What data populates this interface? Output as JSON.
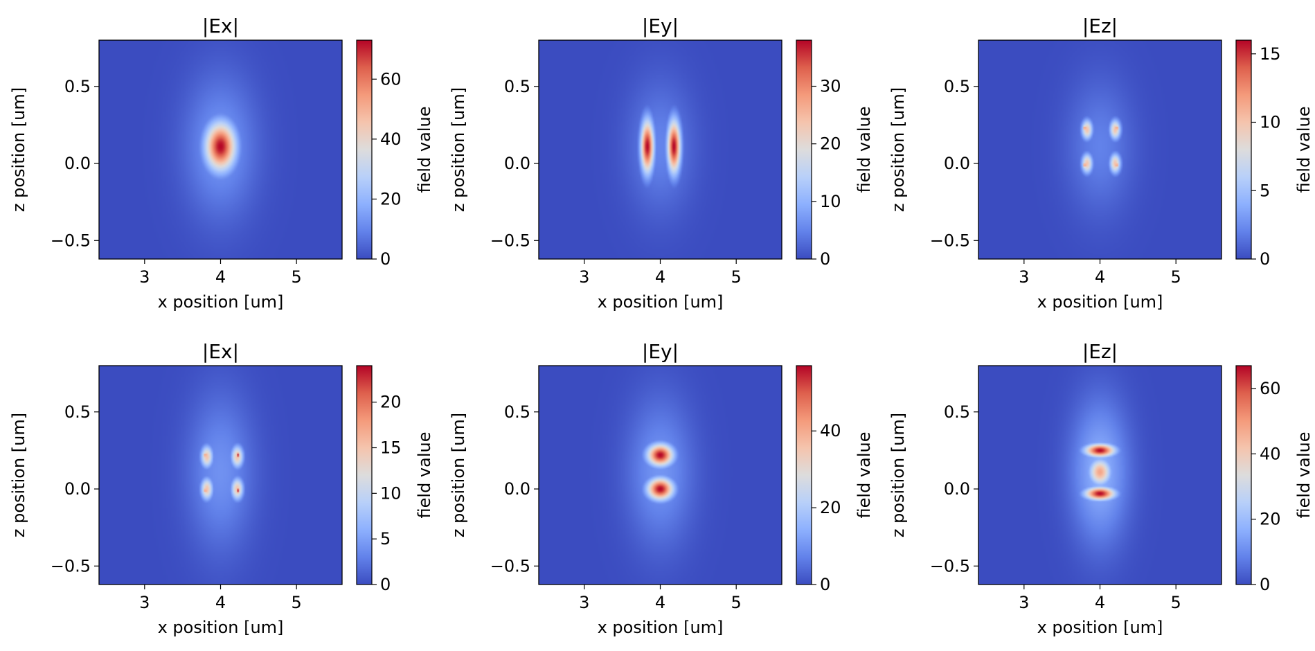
{
  "colors": {
    "colormap": "coolwarm",
    "background_blue": "#3b4cc0",
    "peak_red": "#b40426",
    "frame": "#000000"
  },
  "chart_data": [
    {
      "type": "heatmap",
      "title": "|Ex|",
      "xlabel": "x position [um]",
      "ylabel": "z position [um]",
      "colorbar_label": "field value",
      "xlim": [
        2.4,
        5.6
      ],
      "ylim": [
        -0.62,
        0.8
      ],
      "xticks": [
        3,
        4,
        5
      ],
      "xtick_labels": [
        "3",
        "4",
        "5"
      ],
      "yticks": [
        -0.5,
        0.0,
        0.5
      ],
      "ytick_labels": [
        "−0.5",
        "0.0",
        "0.5"
      ],
      "clim": [
        0,
        73
      ],
      "cticks": [
        0,
        20,
        40,
        60
      ],
      "ctick_labels": [
        "0",
        "20",
        "40",
        "60"
      ],
      "features": [
        {
          "x": 4.0,
          "z": 0.11,
          "sx": 0.14,
          "sz": 0.11,
          "amp": 73
        },
        {
          "x": 4.0,
          "z": 0.11,
          "sx": 0.33,
          "sz": 0.32,
          "amp": 13
        }
      ]
    },
    {
      "type": "heatmap",
      "title": "|Ey|",
      "xlabel": "x position [um]",
      "ylabel": "z position [um]",
      "colorbar_label": "field value",
      "xlim": [
        2.4,
        5.6
      ],
      "ylim": [
        -0.62,
        0.8
      ],
      "xticks": [
        3,
        4,
        5
      ],
      "xtick_labels": [
        "3",
        "4",
        "5"
      ],
      "yticks": [
        -0.5,
        0.0,
        0.5
      ],
      "ytick_labels": [
        "−0.5",
        "0.0",
        "0.5"
      ],
      "clim": [
        0,
        38
      ],
      "cticks": [
        0,
        10,
        20,
        30
      ],
      "ctick_labels": [
        "0",
        "10",
        "20",
        "30"
      ],
      "features": [
        {
          "x": 3.83,
          "z": 0.11,
          "sx": 0.06,
          "sz": 0.12,
          "amp": 38
        },
        {
          "x": 4.18,
          "z": 0.11,
          "sx": 0.06,
          "sz": 0.12,
          "amp": 38
        },
        {
          "x": 4.0,
          "z": 0.11,
          "sx": 0.3,
          "sz": 0.3,
          "amp": 5
        }
      ]
    },
    {
      "type": "heatmap",
      "title": "|Ez|",
      "xlabel": "x position [um]",
      "ylabel": "z position [um]",
      "colorbar_label": "field value",
      "xlim": [
        2.4,
        5.6
      ],
      "ylim": [
        -0.62,
        0.8
      ],
      "xticks": [
        3,
        4,
        5
      ],
      "xtick_labels": [
        "3",
        "4",
        "5"
      ],
      "yticks": [
        -0.5,
        0.0,
        0.5
      ],
      "ytick_labels": [
        "−0.5",
        "0.0",
        "0.5"
      ],
      "clim": [
        0,
        16
      ],
      "cticks": [
        0,
        5,
        10,
        15
      ],
      "ctick_labels": [
        "0",
        "5",
        "10",
        "15"
      ],
      "features": [
        {
          "x": 3.83,
          "z": 0.22,
          "sx": 0.05,
          "sz": 0.045,
          "amp": 10
        },
        {
          "x": 4.2,
          "z": 0.22,
          "sx": 0.05,
          "sz": 0.045,
          "amp": 10
        },
        {
          "x": 3.83,
          "z": 0.0,
          "sx": 0.05,
          "sz": 0.045,
          "amp": 10
        },
        {
          "x": 4.2,
          "z": 0.0,
          "sx": 0.05,
          "sz": 0.045,
          "amp": 10
        },
        {
          "x": 3.8,
          "z": 0.23,
          "sx": 0.012,
          "sz": 0.015,
          "amp": 16
        },
        {
          "x": 4.22,
          "z": 0.23,
          "sx": 0.012,
          "sz": 0.015,
          "amp": 16
        },
        {
          "x": 3.8,
          "z": -0.01,
          "sx": 0.012,
          "sz": 0.015,
          "amp": 16
        },
        {
          "x": 4.22,
          "z": -0.01,
          "sx": 0.012,
          "sz": 0.015,
          "amp": 16
        },
        {
          "x": 4.0,
          "z": 0.11,
          "sx": 0.3,
          "sz": 0.3,
          "amp": 2
        }
      ]
    },
    {
      "type": "heatmap",
      "title": "|Ex|",
      "xlabel": "x position [um]",
      "ylabel": "z position [um]",
      "colorbar_label": "field value",
      "xlim": [
        2.4,
        5.6
      ],
      "ylim": [
        -0.62,
        0.8
      ],
      "xticks": [
        3,
        4,
        5
      ],
      "xtick_labels": [
        "3",
        "4",
        "5"
      ],
      "yticks": [
        -0.5,
        0.0,
        0.5
      ],
      "ytick_labels": [
        "−0.5",
        "0.0",
        "0.5"
      ],
      "clim": [
        0,
        24
      ],
      "cticks": [
        0,
        5,
        10,
        15,
        20
      ],
      "ctick_labels": [
        "0",
        "5",
        "10",
        "15",
        "20"
      ],
      "features": [
        {
          "x": 3.82,
          "z": 0.21,
          "sx": 0.055,
          "sz": 0.05,
          "amp": 15
        },
        {
          "x": 4.22,
          "z": 0.21,
          "sx": 0.055,
          "sz": 0.05,
          "amp": 15
        },
        {
          "x": 3.82,
          "z": 0.0,
          "sx": 0.055,
          "sz": 0.05,
          "amp": 15
        },
        {
          "x": 4.22,
          "z": 0.0,
          "sx": 0.055,
          "sz": 0.05,
          "amp": 15
        },
        {
          "x": 3.8,
          "z": 0.22,
          "sx": 0.012,
          "sz": 0.015,
          "amp": 24
        },
        {
          "x": 4.23,
          "z": 0.22,
          "sx": 0.012,
          "sz": 0.015,
          "amp": 24
        },
        {
          "x": 3.8,
          "z": -0.01,
          "sx": 0.012,
          "sz": 0.015,
          "amp": 24
        },
        {
          "x": 4.23,
          "z": -0.01,
          "sx": 0.012,
          "sz": 0.015,
          "amp": 24
        },
        {
          "x": 4.0,
          "z": 0.11,
          "sx": 0.3,
          "sz": 0.35,
          "amp": 4
        }
      ]
    },
    {
      "type": "heatmap",
      "title": "|Ey|",
      "xlabel": "x position [um]",
      "ylabel": "z position [um]",
      "colorbar_label": "field value",
      "xlim": [
        2.4,
        5.6
      ],
      "ylim": [
        -0.62,
        0.8
      ],
      "xticks": [
        3,
        4,
        5
      ],
      "xtick_labels": [
        "3",
        "4",
        "5"
      ],
      "yticks": [
        -0.5,
        0.0,
        0.5
      ],
      "ytick_labels": [
        "−0.5",
        "0.0",
        "0.5"
      ],
      "clim": [
        0,
        57
      ],
      "cticks": [
        0,
        20,
        40
      ],
      "ctick_labels": [
        "0",
        "20",
        "40"
      ],
      "features": [
        {
          "x": 4.0,
          "z": 0.22,
          "sx": 0.12,
          "sz": 0.05,
          "amp": 57
        },
        {
          "x": 4.0,
          "z": 0.0,
          "sx": 0.12,
          "sz": 0.05,
          "amp": 57
        },
        {
          "x": 4.0,
          "z": 0.11,
          "sx": 0.3,
          "sz": 0.33,
          "amp": 10
        }
      ]
    },
    {
      "type": "heatmap",
      "title": "|Ez|",
      "xlabel": "x position [um]",
      "ylabel": "z position [um]",
      "colorbar_label": "field value",
      "xlim": [
        2.4,
        5.6
      ],
      "ylim": [
        -0.62,
        0.8
      ],
      "xticks": [
        3,
        4,
        5
      ],
      "xtick_labels": [
        "3",
        "4",
        "5"
      ],
      "yticks": [
        -0.5,
        0.0,
        0.5
      ],
      "ytick_labels": [
        "−0.5",
        "0.0",
        "0.5"
      ],
      "clim": [
        0,
        67
      ],
      "cticks": [
        0,
        20,
        40,
        60
      ],
      "ctick_labels": [
        "0",
        "20",
        "40",
        "60"
      ],
      "features": [
        {
          "x": 4.0,
          "z": 0.25,
          "sx": 0.14,
          "sz": 0.03,
          "amp": 67
        },
        {
          "x": 4.0,
          "z": -0.03,
          "sx": 0.14,
          "sz": 0.03,
          "amp": 67
        },
        {
          "x": 4.0,
          "z": 0.11,
          "sx": 0.1,
          "sz": 0.06,
          "amp": 48
        },
        {
          "x": 4.0,
          "z": 0.11,
          "sx": 0.26,
          "sz": 0.32,
          "amp": 17
        }
      ]
    }
  ]
}
